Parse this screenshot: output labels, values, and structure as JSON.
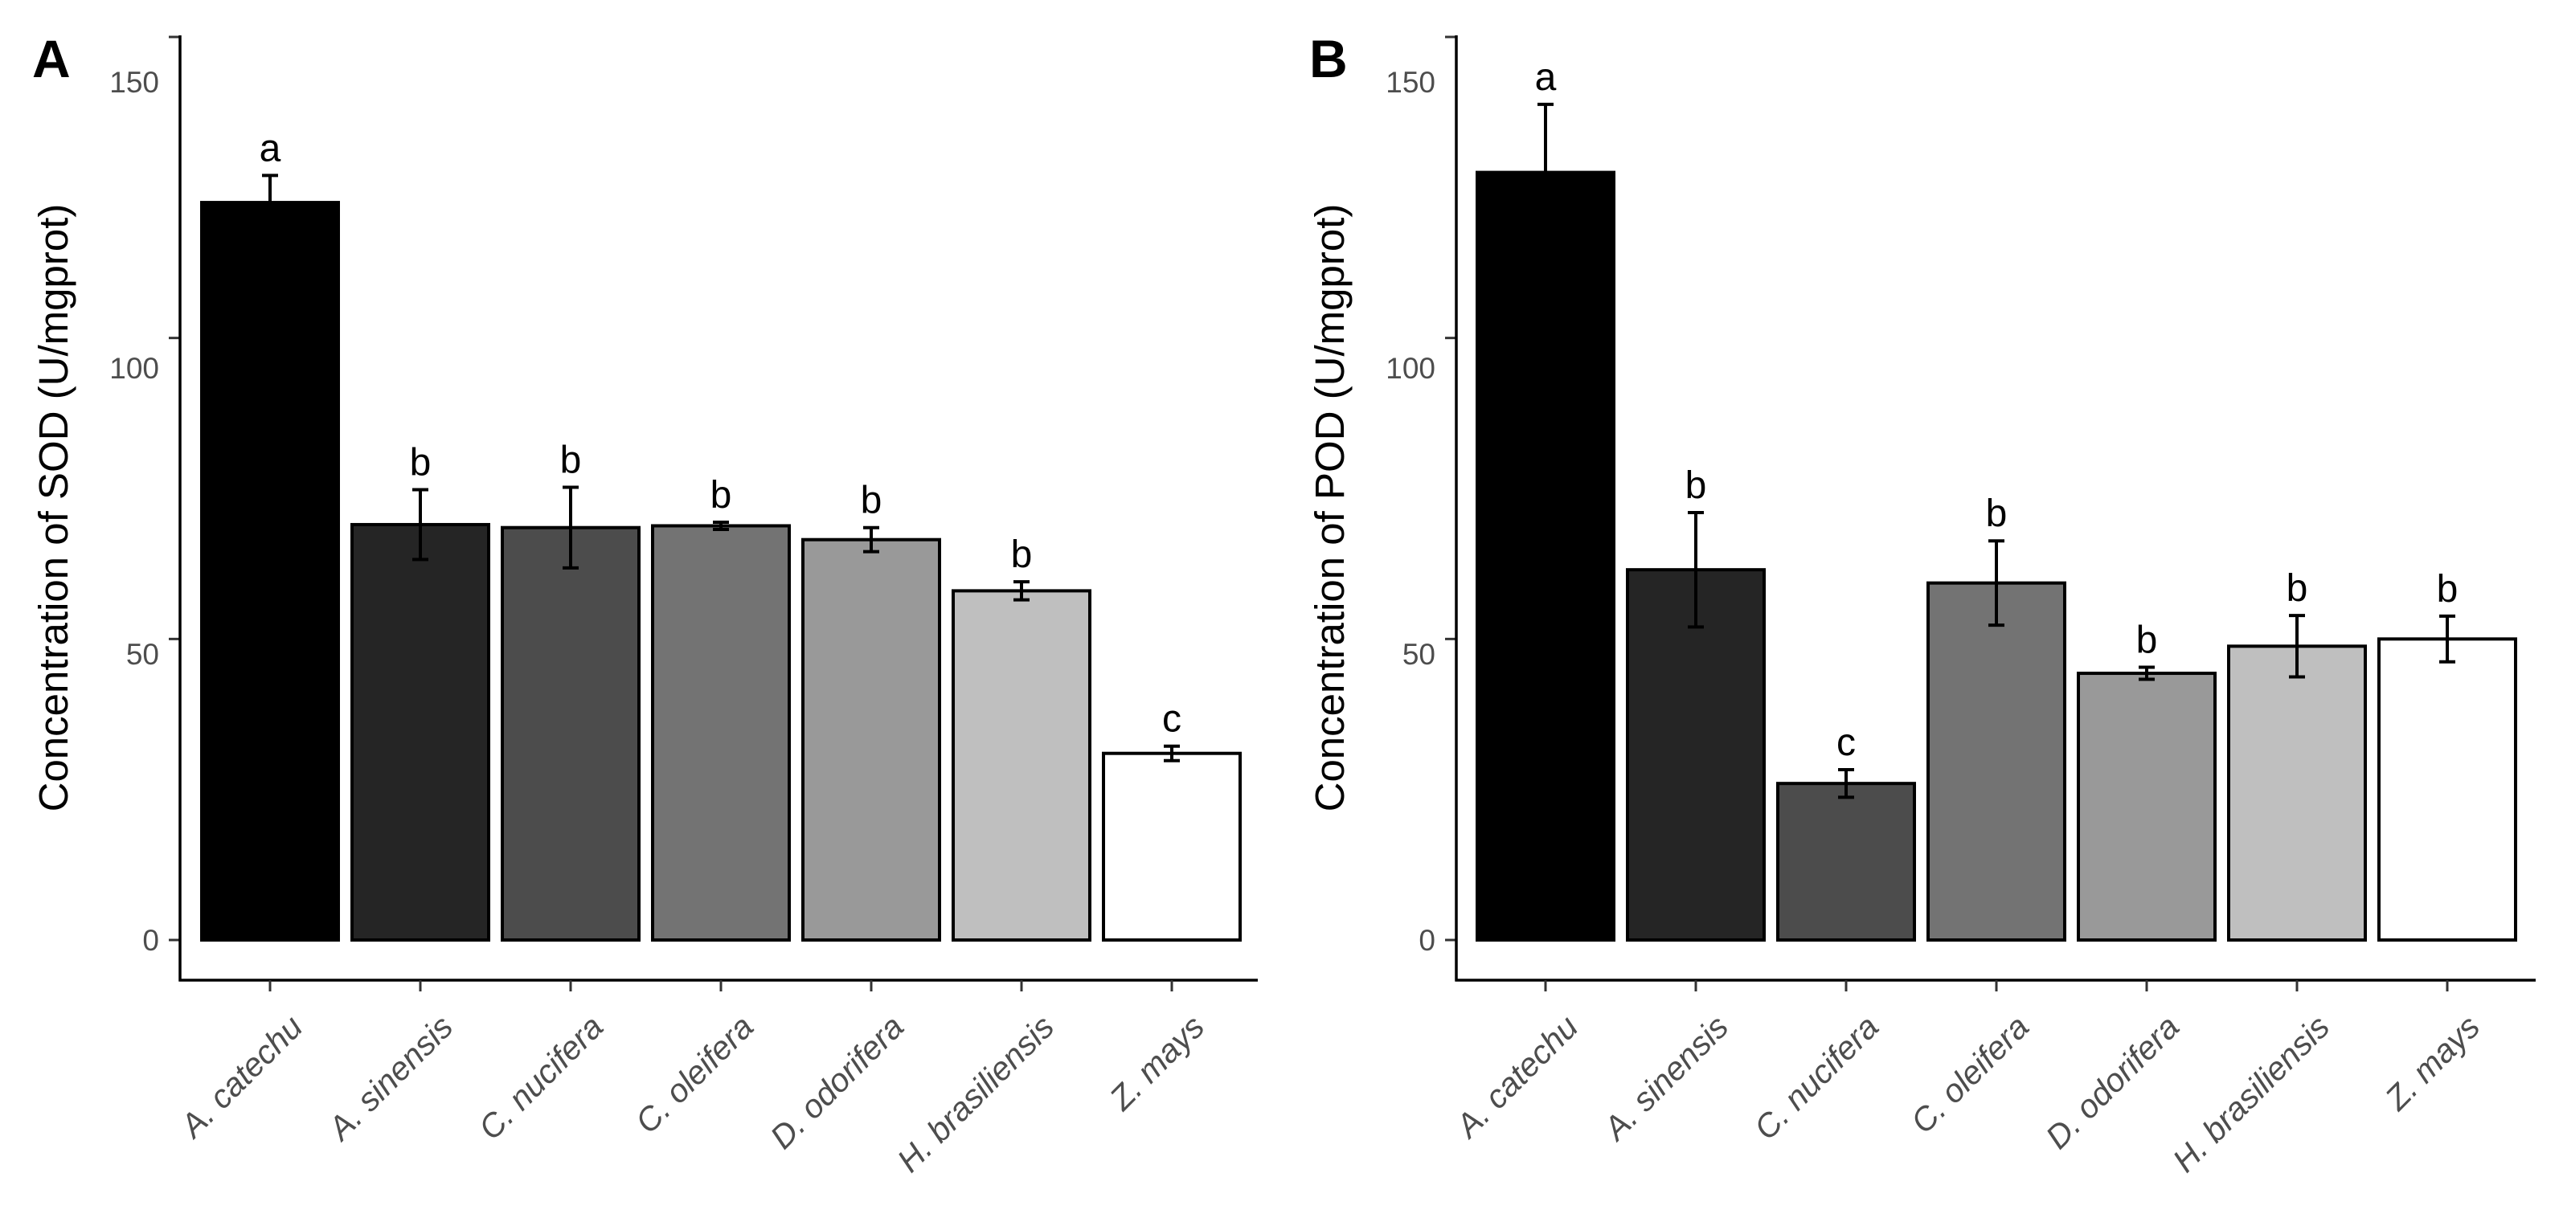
{
  "chart_data": [
    {
      "type": "bar",
      "panel_label": "A",
      "ylabel": "Concentration of SOD (U/mgprot)",
      "xlabel": "",
      "ylim": [
        0,
        150
      ],
      "yticks": [
        "0",
        "50",
        "100",
        "150"
      ],
      "categories": [
        "A. catechu",
        "A. sinensis",
        "C. nucifera",
        "C. oleifera",
        "D. odorifera",
        "H. brasiliensis",
        "Z. mays"
      ],
      "values": [
        122.5,
        69.0,
        68.5,
        68.8,
        66.5,
        58.0,
        31.0
      ],
      "errors": [
        4.5,
        5.8,
        6.7,
        0.6,
        2.0,
        1.5,
        1.2
      ],
      "significance": [
        "a",
        "b",
        "b",
        "b",
        "b",
        "b",
        "c"
      ],
      "colors": [
        "#000000",
        "#252525",
        "#4c4c4c",
        "#737373",
        "#999999",
        "#bfbfbf",
        "#ffffff"
      ]
    },
    {
      "type": "bar",
      "panel_label": "B",
      "ylabel": "Concentration of POD (U/mgprot)",
      "xlabel": "",
      "ylim": [
        0,
        150
      ],
      "yticks": [
        "0",
        "50",
        "100",
        "150"
      ],
      "categories": [
        "A. catechu",
        "A. sinensis",
        "C. nucifera",
        "C. oleifera",
        "D. odorifera",
        "H. brasiliensis",
        "Z. mays"
      ],
      "values": [
        127.5,
        61.5,
        26.0,
        59.3,
        44.3,
        48.8,
        50.0
      ],
      "errors": [
        11.3,
        9.5,
        2.3,
        7.0,
        1.0,
        5.1,
        3.8
      ],
      "significance": [
        "a",
        "b",
        "c",
        "b",
        "b",
        "b",
        "b"
      ],
      "colors": [
        "#000000",
        "#252525",
        "#4c4c4c",
        "#737373",
        "#999999",
        "#bfbfbf",
        "#ffffff"
      ]
    }
  ]
}
